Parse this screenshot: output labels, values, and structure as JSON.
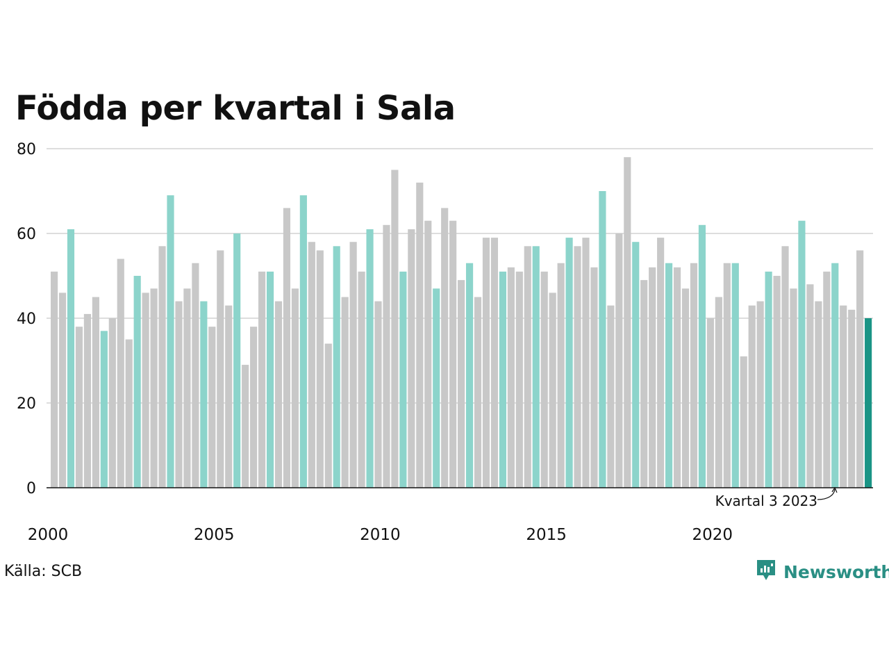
{
  "chart_data": {
    "type": "bar",
    "title": "Födda per kvartal i Sala",
    "xlabel": "",
    "ylabel": "",
    "ylim": [
      0,
      80
    ],
    "y_ticks": [
      0,
      20,
      40,
      60,
      80
    ],
    "x_tick_labels": [
      "2000",
      "2005",
      "2010",
      "2015",
      "2020"
    ],
    "grid": true,
    "start_year": 2000,
    "values": [
      51,
      46,
      61,
      38,
      41,
      45,
      37,
      40,
      54,
      35,
      50,
      46,
      47,
      57,
      69,
      44,
      47,
      53,
      44,
      38,
      56,
      43,
      60,
      29,
      38,
      51,
      51,
      44,
      66,
      47,
      69,
      58,
      56,
      34,
      57,
      45,
      58,
      51,
      61,
      44,
      62,
      75,
      51,
      61,
      72,
      63,
      47,
      66,
      63,
      49,
      53,
      45,
      59,
      59,
      51,
      52,
      51,
      57,
      57,
      51,
      46,
      53,
      59,
      57,
      59,
      52,
      70,
      43,
      60,
      78,
      58,
      49,
      52,
      59,
      53,
      52,
      47,
      53,
      62,
      40,
      45,
      53,
      53,
      31,
      43,
      44,
      51,
      50,
      57,
      47,
      63,
      48,
      44,
      51,
      53,
      43,
      42,
      56,
      40
    ],
    "colors": {
      "other_quarter": "#c8c8c8",
      "same_quarter": "#8cd4cb",
      "latest": "#1a9485",
      "gridline": "#dddddd",
      "axis": "#111111"
    },
    "annotation": {
      "label": "Kvartal 3 2023"
    }
  },
  "footer": {
    "source": "Källa: SCB",
    "brand": "Newsworthy",
    "brand_icon": "newsworthy-logo-icon"
  }
}
